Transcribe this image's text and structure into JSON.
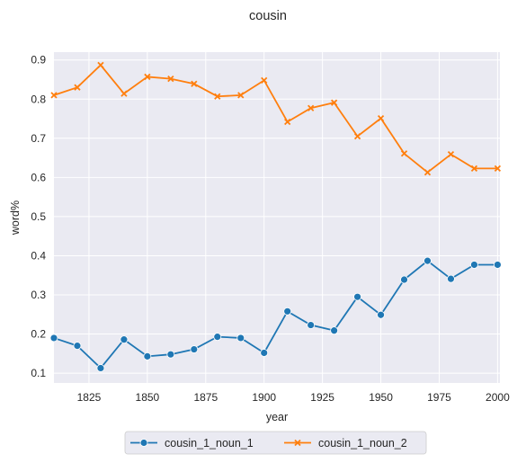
{
  "chart_data": {
    "type": "line",
    "title": "cousin",
    "xlabel": "year",
    "ylabel": "word%",
    "xlim": [
      1810,
      2001
    ],
    "ylim": [
      0.075,
      0.92
    ],
    "xticks": [
      1825,
      1850,
      1875,
      1900,
      1925,
      1950,
      1975,
      2000
    ],
    "yticks": [
      0.1,
      0.2,
      0.3,
      0.4,
      0.5,
      0.6,
      0.7,
      0.8,
      0.9
    ],
    "grid": true,
    "legend_position": "bottom-center",
    "x": [
      1810,
      1820,
      1830,
      1840,
      1850,
      1860,
      1870,
      1880,
      1890,
      1900,
      1910,
      1920,
      1930,
      1940,
      1950,
      1960,
      1970,
      1980,
      1990,
      2000
    ],
    "series": [
      {
        "name": "cousin_1_noun_1",
        "color": "#1f77b4",
        "marker": "circle",
        "values": [
          0.19,
          0.17,
          0.113,
          0.186,
          0.143,
          0.148,
          0.161,
          0.193,
          0.19,
          0.152,
          0.258,
          0.223,
          0.209,
          0.295,
          0.249,
          0.339,
          0.387,
          0.341,
          0.377,
          0.377
        ]
      },
      {
        "name": "cousin_1_noun_2",
        "color": "#ff7f0e",
        "marker": "x",
        "values": [
          0.81,
          0.83,
          0.887,
          0.814,
          0.857,
          0.852,
          0.839,
          0.807,
          0.81,
          0.848,
          0.742,
          0.777,
          0.791,
          0.705,
          0.751,
          0.661,
          0.613,
          0.659,
          0.623,
          0.623
        ]
      }
    ]
  }
}
